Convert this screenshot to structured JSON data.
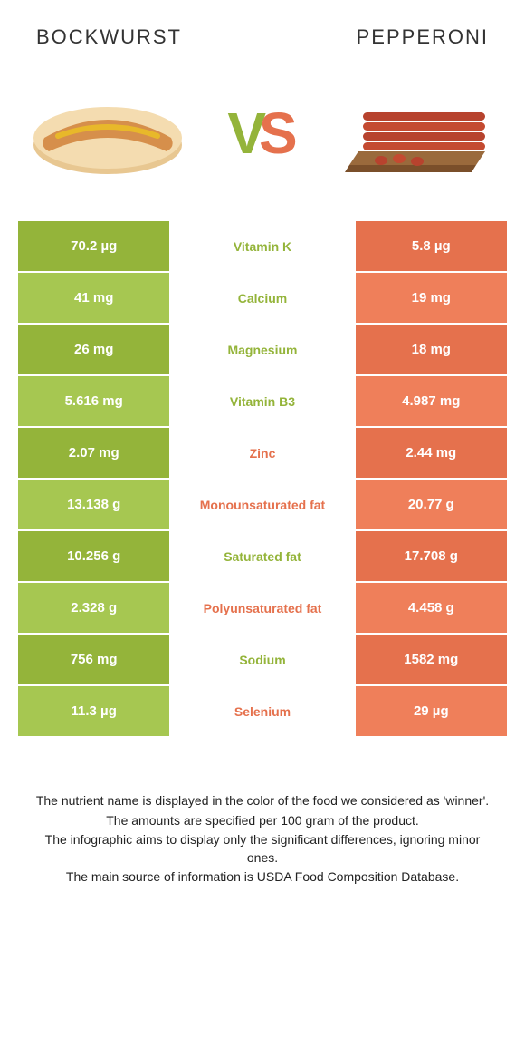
{
  "header": {
    "left_title": "BOCKWURST",
    "right_title": "PEPPERONI"
  },
  "vs": {
    "v": "V",
    "s": "S"
  },
  "colors": {
    "green_dark": "#94b43a",
    "green_light": "#a6c751",
    "orange_dark": "#e5714d",
    "orange_light": "#ef7f5a",
    "text_white": "#ffffff",
    "vs_v": "#94b43a",
    "vs_s": "#e5714d"
  },
  "rows": [
    {
      "left": "70.2 µg",
      "mid": "Vitamin K",
      "right": "5.8 µg",
      "winner": "left"
    },
    {
      "left": "41 mg",
      "mid": "Calcium",
      "right": "19 mg",
      "winner": "left"
    },
    {
      "left": "26 mg",
      "mid": "Magnesium",
      "right": "18 mg",
      "winner": "left"
    },
    {
      "left": "5.616 mg",
      "mid": "Vitamin B3",
      "right": "4.987 mg",
      "winner": "left"
    },
    {
      "left": "2.07 mg",
      "mid": "Zinc",
      "right": "2.44 mg",
      "winner": "right"
    },
    {
      "left": "13.138 g",
      "mid": "Monounsaturated fat",
      "right": "20.77 g",
      "winner": "right"
    },
    {
      "left": "10.256 g",
      "mid": "Saturated fat",
      "right": "17.708 g",
      "winner": "left"
    },
    {
      "left": "2.328 g",
      "mid": "Polyunsaturated fat",
      "right": "4.458 g",
      "winner": "right"
    },
    {
      "left": "756 mg",
      "mid": "Sodium",
      "right": "1582 mg",
      "winner": "left"
    },
    {
      "left": "11.3 µg",
      "mid": "Selenium",
      "right": "29 µg",
      "winner": "right"
    }
  ],
  "footer": [
    "The nutrient name is displayed in the color of the food we considered as 'winner'.",
    "The amounts are specified per 100 gram of the product.",
    "The infographic aims to display only the significant differences, ignoring minor ones.",
    "The main source of information is USDA Food Composition Database."
  ],
  "images": {
    "left_alt": "bockwurst-hotdog",
    "right_alt": "pepperoni-sticks"
  }
}
